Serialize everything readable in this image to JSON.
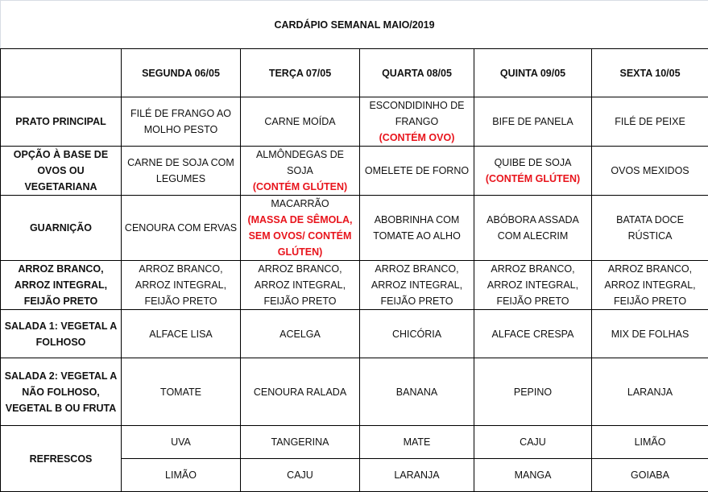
{
  "title": "CARDÁPIO SEMANAL MAIO/2019",
  "days": [
    "SEGUNDA 06/05",
    "TERÇA 07/05",
    "QUARTA 08/05",
    "QUINTA 09/05",
    "SEXTA 10/05"
  ],
  "colors": {
    "allergen_note": "#e8141c",
    "border": "#000000"
  },
  "rows": [
    {
      "label": "PRATO PRINCIPAL",
      "cells": [
        {
          "text": "FILÉ DE FRANGO AO MOLHO PESTO"
        },
        {
          "text": "CARNE MOÍDA"
        },
        {
          "text": "ESCONDIDINHO DE FRANGO",
          "note": "(CONTÉM OVO)"
        },
        {
          "text": "BIFE DE PANELA"
        },
        {
          "text": "FILÉ DE PEIXE"
        }
      ]
    },
    {
      "label": "OPÇÃO À BASE DE OVOS OU VEGETARIANA",
      "cells": [
        {
          "text": "CARNE DE SOJA COM LEGUMES"
        },
        {
          "text": "ALMÔNDEGAS DE SOJA",
          "note": "(CONTÉM GLÚTEN)"
        },
        {
          "text": "OMELETE DE FORNO"
        },
        {
          "text": "QUIBE DE SOJA",
          "note": "(CONTÉM GLÚTEN)"
        },
        {
          "text": "OVOS MEXIDOS"
        }
      ]
    },
    {
      "label": "GUARNIÇÃO",
      "cells": [
        {
          "text": "CENOURA COM ERVAS"
        },
        {
          "text": "MACARRÃO",
          "note": "(MASSA DE SÊMOLA, SEM OVOS/ CONTÉM GLÚTEN)"
        },
        {
          "text": "ABOBRINHA COM TOMATE AO ALHO"
        },
        {
          "text": "ABÓBORA ASSADA COM ALECRIM"
        },
        {
          "text": "BATATA DOCE RÚSTICA"
        }
      ]
    },
    {
      "label": "ARROZ BRANCO, ARROZ INTEGRAL, FEIJÃO PRETO",
      "cells": [
        {
          "text": "ARROZ BRANCO, ARROZ INTEGRAL, FEIJÃO PRETO"
        },
        {
          "text": "ARROZ BRANCO, ARROZ INTEGRAL, FEIJÃO PRETO"
        },
        {
          "text": "ARROZ BRANCO, ARROZ INTEGRAL, FEIJÃO PRETO"
        },
        {
          "text": "ARROZ BRANCO, ARROZ INTEGRAL, FEIJÃO PRETO"
        },
        {
          "text": "ARROZ BRANCO, ARROZ INTEGRAL, FEIJÃO PRETO"
        }
      ]
    },
    {
      "label": "SALADA 1: VEGETAL A FOLHOSO",
      "cells": [
        {
          "text": "ALFACE LISA"
        },
        {
          "text": "ACELGA"
        },
        {
          "text": "CHICÓRIA"
        },
        {
          "text": "ALFACE CRESPA"
        },
        {
          "text": "MIX DE FOLHAS"
        }
      ]
    },
    {
      "label": "SALADA 2: VEGETAL A NÃO FOLHOSO, VEGETAL B OU FRUTA",
      "cells": [
        {
          "text": "TOMATE"
        },
        {
          "text": "CENOURA RALADA"
        },
        {
          "text": "BANANA"
        },
        {
          "text": "PEPINO"
        },
        {
          "text": "LARANJA"
        }
      ]
    }
  ],
  "refrescos": {
    "label": "REFRESCOS",
    "row1": [
      "UVA",
      "TANGERINA",
      "MATE",
      "CAJU",
      "LIMÃO"
    ],
    "row2": [
      "LIMÃO",
      "CAJU",
      "LARANJA",
      "MANGA",
      "GOIABA"
    ]
  }
}
